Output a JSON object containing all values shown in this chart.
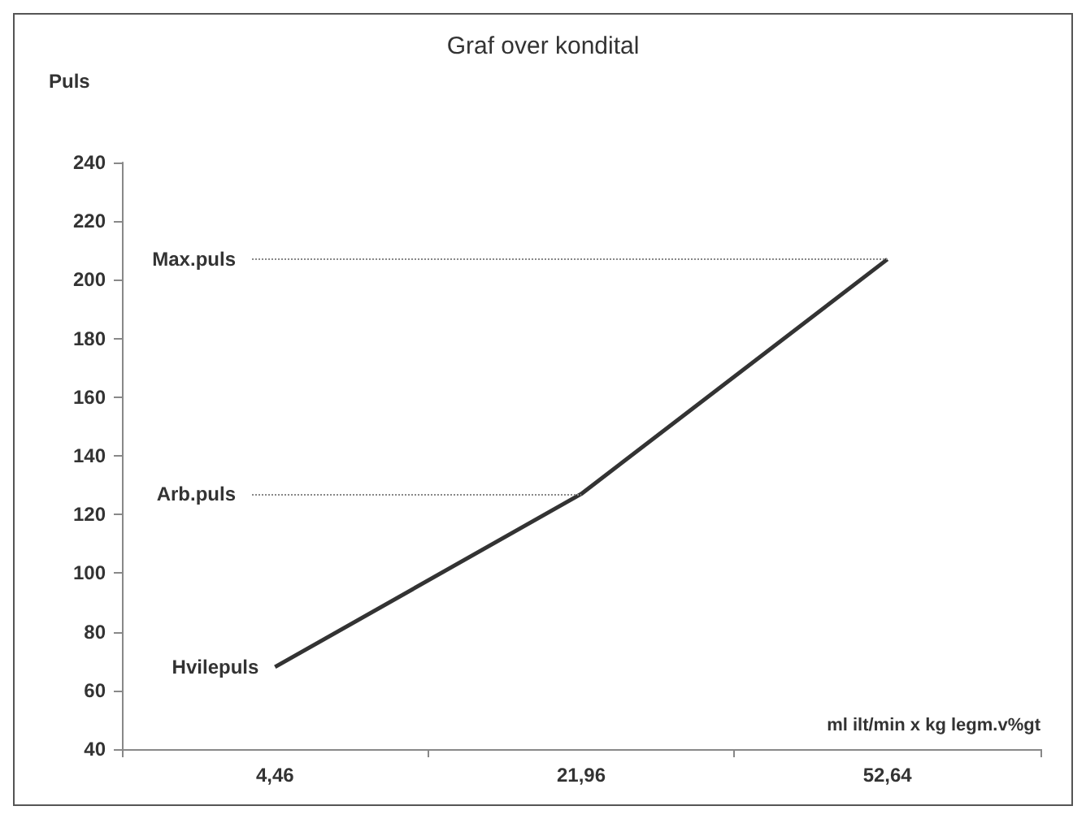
{
  "chart_data": {
    "type": "line",
    "title": "Graf over kondital",
    "xlabel": "ml ilt/min x kg legm.v%gt",
    "ylabel": "Puls",
    "categories": [
      "4,46",
      "21,96",
      "52,64"
    ],
    "series": [
      {
        "color": "#333333",
        "values": [
          68,
          127,
          207
        ]
      }
    ],
    "ylim": [
      40,
      240
    ],
    "yticks": [
      40,
      60,
      80,
      100,
      120,
      140,
      160,
      180,
      200,
      220,
      240
    ],
    "ref_lines": [
      {
        "axis": "y",
        "value": 207,
        "label": "Max.puls",
        "line_style": "dotted",
        "color": "#888888"
      },
      {
        "axis": "y",
        "value": 127,
        "label": "Arb.puls",
        "line_style": "dotted",
        "color": "#888888"
      }
    ],
    "annotations": [
      {
        "text": "Hvilepuls",
        "x": "4,46",
        "y": 68
      }
    ],
    "grid": false,
    "marker": "none",
    "line_style": "solid"
  }
}
